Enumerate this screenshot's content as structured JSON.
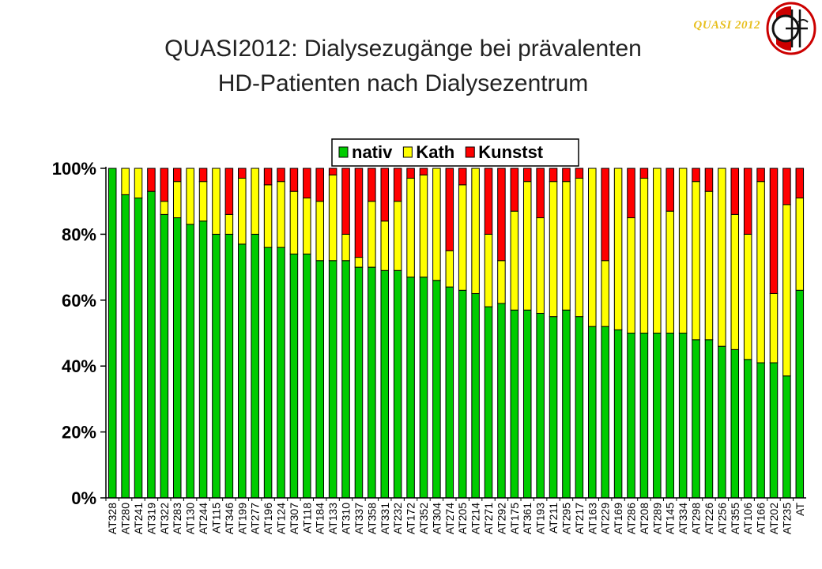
{
  "title_line1": "QUASI2012: Dialysezugänge bei prävalenten",
  "title_line2": "HD-Patienten nach Dialysezentrum",
  "logo_text": "QUASI 2012",
  "chart_data": {
    "type": "bar",
    "stacked": true,
    "title": "QUASI2012: Dialysezugänge bei prävalenten HD-Patienten nach Dialysezentrum",
    "xlabel": "",
    "ylabel": "",
    "ylim": [
      0,
      100
    ],
    "yticks": [
      "0%",
      "20%",
      "40%",
      "60%",
      "80%",
      "100%"
    ],
    "grid": false,
    "legend_position": "top",
    "colors": {
      "nativ": "#00cc00",
      "Kath": "#ffff00",
      "Kunstst": "#ff0000"
    },
    "categories": [
      "AT328",
      "AT280",
      "AT241",
      "AT319",
      "AT322",
      "AT283",
      "AT130",
      "AT244",
      "AT115",
      "AT346",
      "AT199",
      "AT277",
      "AT196",
      "AT124",
      "AT307",
      "AT118",
      "AT184",
      "AT133",
      "AT310",
      "AT337",
      "AT358",
      "AT331",
      "AT232",
      "AT172",
      "AT352",
      "AT304",
      "AT274",
      "AT205",
      "AT214",
      "AT271",
      "AT292",
      "AT175",
      "AT361",
      "AT193",
      "AT211",
      "AT295",
      "AT217",
      "AT163",
      "AT229",
      "AT169",
      "AT286",
      "AT208",
      "AT289",
      "AT145",
      "AT334",
      "AT298",
      "AT226",
      "AT256",
      "AT355",
      "AT106",
      "AT166",
      "AT202",
      "AT235",
      "AT"
    ],
    "series": [
      {
        "name": "nativ",
        "values": [
          100,
          92,
          91,
          93,
          86,
          85,
          83,
          84,
          80,
          80,
          77,
          80,
          76,
          76,
          74,
          74,
          72,
          72,
          72,
          70,
          70,
          69,
          69,
          67,
          67,
          66,
          64,
          63,
          62,
          58,
          59,
          57,
          57,
          56,
          55,
          57,
          55,
          52,
          52,
          51,
          50,
          50,
          50,
          50,
          50,
          48,
          48,
          46,
          45,
          42,
          41,
          41,
          37,
          63
        ]
      },
      {
        "name": "Kath",
        "values": [
          0,
          8,
          9,
          0,
          4,
          11,
          17,
          12,
          20,
          6,
          20,
          20,
          19,
          20,
          19,
          17,
          18,
          26,
          8,
          3,
          20,
          15,
          21,
          30,
          31,
          34,
          11,
          32,
          38,
          22,
          13,
          30,
          39,
          29,
          41,
          39,
          42,
          48,
          20,
          49,
          35,
          47,
          50,
          37,
          50,
          48,
          45,
          54,
          41,
          38,
          55,
          21,
          52,
          28
        ]
      },
      {
        "name": "Kunstst",
        "values": [
          0,
          0,
          0,
          7,
          10,
          4,
          0,
          4,
          0,
          14,
          3,
          0,
          5,
          4,
          7,
          9,
          10,
          2,
          20,
          27,
          10,
          16,
          10,
          3,
          2,
          0,
          25,
          5,
          0,
          20,
          28,
          13,
          4,
          15,
          4,
          4,
          3,
          0,
          28,
          0,
          15,
          3,
          0,
          13,
          0,
          4,
          7,
          0,
          14,
          20,
          4,
          38,
          11,
          9
        ]
      }
    ]
  }
}
